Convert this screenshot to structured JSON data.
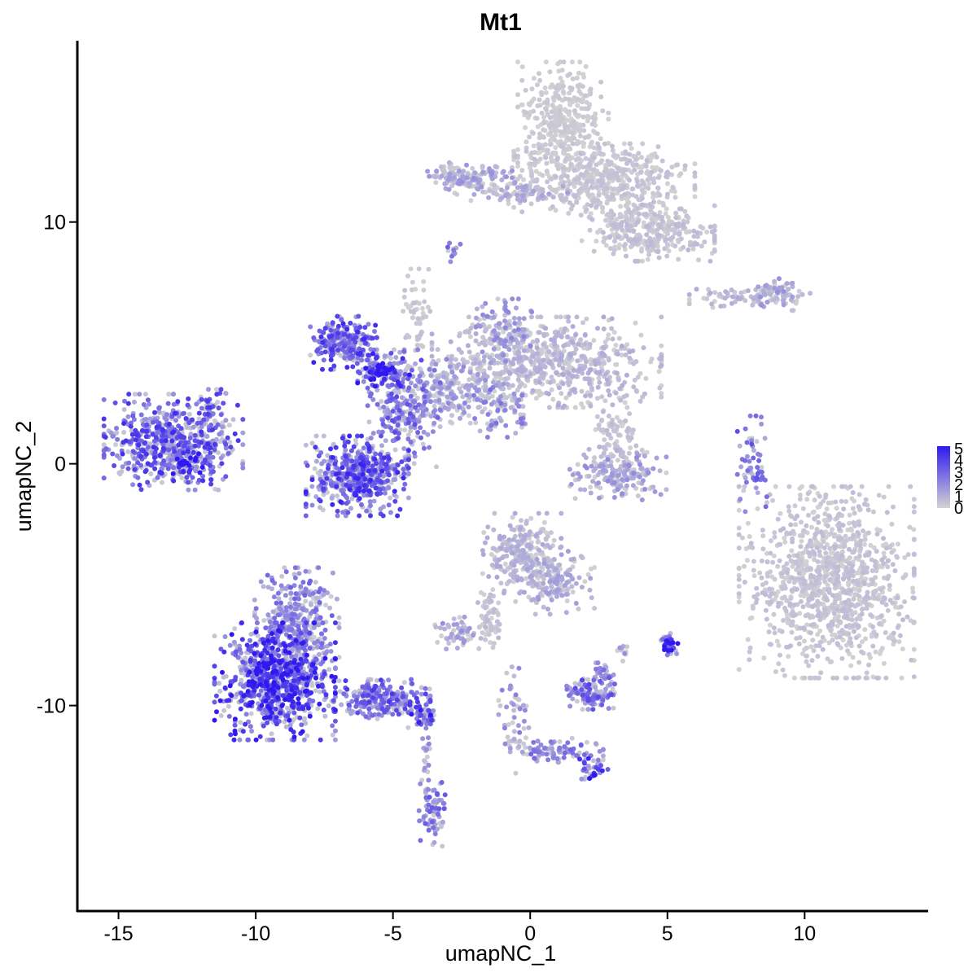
{
  "chart_data": {
    "type": "scatter",
    "title": "Mt1",
    "xlabel": "umapNC_1",
    "ylabel": "umapNC_2",
    "xlim": [
      -16.5,
      14.5
    ],
    "ylim": [
      -18.5,
      17.5
    ],
    "x_ticks": [
      -15,
      -10,
      -5,
      0,
      5,
      10
    ],
    "x_tick_labels": [
      "-15",
      "-10",
      "-5",
      "0",
      "5",
      "10"
    ],
    "y_ticks": [
      -10,
      0,
      10
    ],
    "y_tick_labels": [
      "-10",
      "0",
      "10"
    ],
    "grid": false,
    "legend": {
      "position": "right",
      "labels": [
        "5",
        "4",
        "3",
        "2",
        "1",
        "0"
      ],
      "values": [
        5,
        4,
        3,
        2,
        1,
        0
      ],
      "color_low": "#d3d3d3",
      "color_high": "#2f19f0",
      "range": [
        0,
        5.2
      ]
    },
    "clusters": [
      {
        "center": [
          -13.0,
          0.9
        ],
        "spread": [
          1.15,
          0.9
        ],
        "expression": 3.2,
        "count": 600
      },
      {
        "center": [
          -12.6,
          0.0
        ],
        "spread": [
          0.3,
          0.3
        ],
        "expression": 4.8,
        "count": 40
      },
      {
        "center": [
          -11.6,
          2.2
        ],
        "spread": [
          0.25,
          0.4
        ],
        "expression": 3.0,
        "count": 40
      },
      {
        "center": [
          -6.3,
          -0.5
        ],
        "spread": [
          0.85,
          0.75
        ],
        "expression": 3.4,
        "count": 520
      },
      {
        "center": [
          -6.8,
          5.0
        ],
        "spread": [
          0.55,
          0.5
        ],
        "expression": 3.3,
        "count": 260
      },
      {
        "center": [
          -5.3,
          3.8
        ],
        "spread": [
          0.45,
          0.35
        ],
        "expression": 4.3,
        "count": 120
      },
      {
        "center": [
          -4.6,
          2.3
        ],
        "spread": [
          0.6,
          1.1
        ],
        "expression": 2.7,
        "count": 240
      },
      {
        "center": [
          -3.0,
          3.0
        ],
        "spread": [
          0.8,
          0.6
        ],
        "expression": 1.5,
        "count": 180
      },
      {
        "center": [
          -4.2,
          6.3
        ],
        "spread": [
          0.25,
          0.8
        ],
        "expression": 0.4,
        "count": 50
      },
      {
        "center": [
          -1.0,
          2.2
        ],
        "spread": [
          0.5,
          0.5
        ],
        "expression": 2.0,
        "count": 80
      },
      {
        "center": [
          0.6,
          4.2
        ],
        "spread": [
          1.9,
          0.85
        ],
        "expression": 0.8,
        "count": 700
      },
      {
        "center": [
          -1.0,
          5.5
        ],
        "spread": [
          0.5,
          0.6
        ],
        "expression": 1.6,
        "count": 110
      },
      {
        "center": [
          1.2,
          14.2
        ],
        "spread": [
          0.75,
          1.1
        ],
        "expression": 0.25,
        "count": 360
      },
      {
        "center": [
          2.7,
          11.7
        ],
        "spread": [
          1.5,
          0.7
        ],
        "expression": 0.4,
        "count": 480
      },
      {
        "center": [
          4.3,
          9.7
        ],
        "spread": [
          1.1,
          0.6
        ],
        "expression": 0.5,
        "count": 320
      },
      {
        "center": [
          -2.2,
          11.8
        ],
        "spread": [
          0.7,
          0.3
        ],
        "expression": 1.3,
        "count": 120
      },
      {
        "center": [
          -0.4,
          11.2
        ],
        "spread": [
          0.8,
          0.2
        ],
        "expression": 1.0,
        "count": 90
      },
      {
        "center": [
          -2.8,
          8.8
        ],
        "spread": [
          0.12,
          0.2
        ],
        "expression": 2.6,
        "count": 12
      },
      {
        "center": [
          8.0,
          6.9
        ],
        "spread": [
          1.0,
          0.2
        ],
        "expression": 0.8,
        "count": 80
      },
      {
        "center": [
          9.0,
          7.0
        ],
        "spread": [
          0.45,
          0.3
        ],
        "expression": 1.4,
        "count": 60
      },
      {
        "center": [
          3.2,
          -0.4
        ],
        "spread": [
          0.8,
          0.5
        ],
        "expression": 1.4,
        "count": 180
      },
      {
        "center": [
          3.2,
          1.1
        ],
        "spread": [
          0.4,
          0.5
        ],
        "expression": 0.5,
        "count": 80
      },
      {
        "center": [
          8.1,
          0.0
        ],
        "spread": [
          0.25,
          0.9
        ],
        "expression": 2.6,
        "count": 60
      },
      {
        "center": [
          10.8,
          -4.9
        ],
        "spread": [
          1.45,
          1.8
        ],
        "expression": 0.45,
        "count": 1100
      },
      {
        "center": [
          -0.3,
          -3.7
        ],
        "spread": [
          0.65,
          0.75
        ],
        "expression": 0.9,
        "count": 240
      },
      {
        "center": [
          0.8,
          -4.9
        ],
        "spread": [
          0.7,
          0.6
        ],
        "expression": 1.1,
        "count": 160
      },
      {
        "center": [
          -1.5,
          -6.3
        ],
        "spread": [
          0.25,
          0.7
        ],
        "expression": 0.6,
        "count": 60
      },
      {
        "center": [
          -2.7,
          -7.0
        ],
        "spread": [
          0.35,
          0.3
        ],
        "expression": 1.4,
        "count": 50
      },
      {
        "center": [
          -9.3,
          -9.0
        ],
        "spread": [
          1.0,
          1.1
        ],
        "expression": 4.0,
        "count": 850
      },
      {
        "center": [
          -8.5,
          -6.5
        ],
        "spread": [
          0.7,
          1.0
        ],
        "expression": 2.2,
        "count": 320
      },
      {
        "center": [
          -5.4,
          -9.8
        ],
        "spread": [
          0.8,
          0.4
        ],
        "expression": 3.0,
        "count": 240
      },
      {
        "center": [
          -3.9,
          -10.4
        ],
        "spread": [
          0.3,
          0.25
        ],
        "expression": 3.7,
        "count": 50
      },
      {
        "center": [
          -3.5,
          -14.5
        ],
        "spread": [
          0.25,
          0.6
        ],
        "expression": 2.4,
        "count": 70
      },
      {
        "center": [
          -3.8,
          -12.3
        ],
        "spread": [
          0.08,
          0.7
        ],
        "expression": 1.6,
        "count": 24
      },
      {
        "center": [
          2.2,
          -9.5
        ],
        "spread": [
          0.4,
          0.3
        ],
        "expression": 2.8,
        "count": 120
      },
      {
        "center": [
          2.6,
          -8.7
        ],
        "spread": [
          0.2,
          0.3
        ],
        "expression": 2.3,
        "count": 25
      },
      {
        "center": [
          0.9,
          -11.9
        ],
        "spread": [
          0.8,
          0.25
        ],
        "expression": 2.2,
        "count": 90
      },
      {
        "center": [
          2.3,
          -12.6
        ],
        "spread": [
          0.25,
          0.2
        ],
        "expression": 3.8,
        "count": 30
      },
      {
        "center": [
          -0.6,
          -10.6
        ],
        "spread": [
          0.25,
          1.0
        ],
        "expression": 1.7,
        "count": 50
      },
      {
        "center": [
          5.1,
          -7.5
        ],
        "spread": [
          0.15,
          0.22
        ],
        "expression": 4.3,
        "count": 40
      },
      {
        "center": [
          3.4,
          -7.7
        ],
        "spread": [
          0.1,
          0.25
        ],
        "expression": 1.5,
        "count": 10
      },
      {
        "center": [
          -3.0,
          12.1
        ],
        "spread": [
          0.25,
          0.2
        ],
        "expression": 0.6,
        "count": 20
      }
    ]
  }
}
